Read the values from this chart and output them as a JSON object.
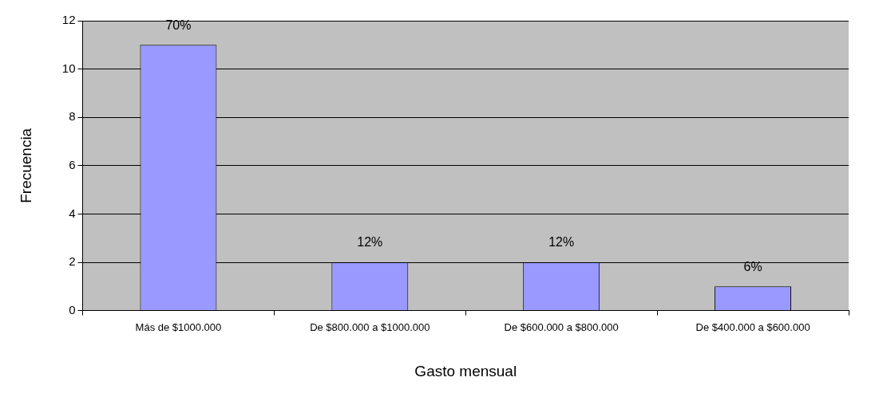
{
  "chart_data": {
    "type": "bar",
    "xlabel": "Gasto mensual",
    "ylabel": "Frecuencia",
    "categories": [
      "Más de $1000.000",
      "De $800.000 a $1000.000",
      "De $600.000 a $800.000",
      "De $400.000 a $600.000"
    ],
    "values": [
      11,
      2,
      2,
      1
    ],
    "color": "#9999ff",
    "annotations": [
      {
        "text": "70%",
        "x": "Más de $1000.000",
        "y": 11
      },
      {
        "text": "12%",
        "x": "De $800.000 a $1000.000",
        "y": 2
      },
      {
        "text": "12%",
        "x": "De $600.000 a $800.000",
        "y": 2
      },
      {
        "text": "6%",
        "x": "De $400.000 a $600.000",
        "y": 1
      }
    ],
    "ylim": [
      0,
      12
    ],
    "yticks": [
      0,
      2,
      4,
      6,
      8,
      10,
      12
    ],
    "grid": "y"
  }
}
